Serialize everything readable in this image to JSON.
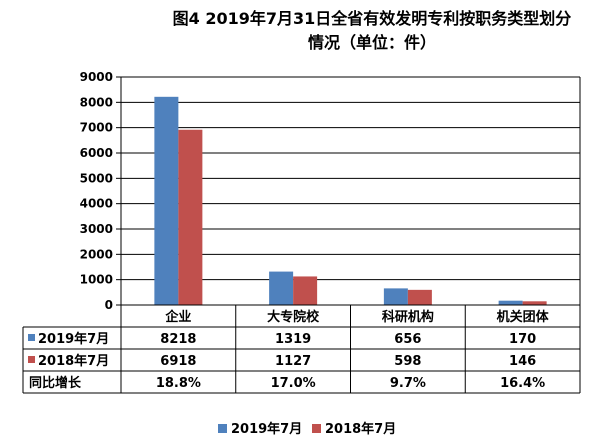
{
  "chart_data": {
    "type": "bar",
    "title_lines": [
      "图4  2019年7月31日全省有效发明专利按职务类型划分",
      "情况（单位：件）"
    ],
    "categories": [
      "企业",
      "大专院校",
      "科研机构",
      "机关团体"
    ],
    "series": [
      {
        "name": "2019年7月",
        "color": "#4F81BD",
        "values": [
          8218,
          1319,
          656,
          170
        ]
      },
      {
        "name": "2018年7月",
        "color": "#C0504D",
        "values": [
          6918,
          1127,
          598,
          146
        ]
      }
    ],
    "table_rows": [
      {
        "label": "2019年7月",
        "color": "#4F81BD",
        "cells": [
          "8218",
          "1319",
          "656",
          "170"
        ]
      },
      {
        "label": "2018年7月",
        "color": "#C0504D",
        "cells": [
          "6918",
          "1127",
          "598",
          "146"
        ]
      },
      {
        "label": "同比增长",
        "color": null,
        "cells": [
          "18.8%",
          "17.0%",
          "9.7%",
          "16.4%"
        ]
      }
    ],
    "ylim": [
      0,
      9000
    ],
    "yticks": [
      0,
      1000,
      2000,
      3000,
      4000,
      5000,
      6000,
      7000,
      8000,
      9000
    ],
    "grid": true,
    "legend_position": "bottom"
  }
}
